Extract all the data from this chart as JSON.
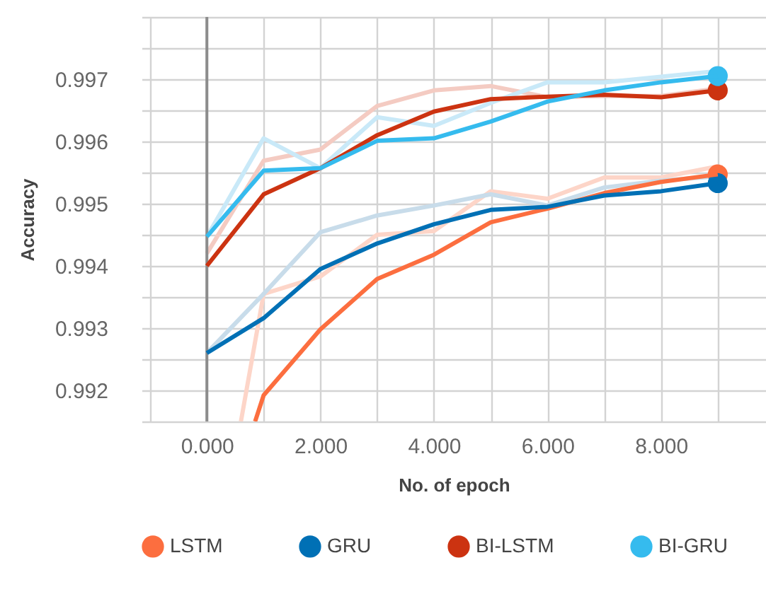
{
  "chart_data": {
    "type": "line",
    "xlabel": "No. of epoch",
    "ylabel": "Accuracy",
    "x": [
      0,
      1,
      2,
      3,
      4,
      5,
      6,
      7,
      8,
      9
    ],
    "xlim": [
      -1.15,
      9.85
    ],
    "xticks": [
      {
        "value": -1,
        "label": null
      },
      {
        "value": 0,
        "label": "0.000"
      },
      {
        "value": 1,
        "label": null
      },
      {
        "value": 2,
        "label": "2.000"
      },
      {
        "value": 3,
        "label": null
      },
      {
        "value": 4,
        "label": "4.000"
      },
      {
        "value": 5,
        "label": null
      },
      {
        "value": 6,
        "label": "6.000"
      },
      {
        "value": 7,
        "label": null
      },
      {
        "value": 8,
        "label": "8.000"
      },
      {
        "value": 9,
        "label": null
      }
    ],
    "ylim": [
      0.9915,
      0.998
    ],
    "yticks": [
      {
        "value": 0.9915,
        "label": null
      },
      0.992,
      {
        "value": 0.9925,
        "label": null
      },
      0.993,
      {
        "value": 0.9935,
        "label": null
      },
      0.994,
      {
        "value": 0.9945,
        "label": null
      },
      0.995,
      {
        "value": 0.9955,
        "label": null
      },
      0.996,
      {
        "value": 0.9965,
        "label": null
      },
      0.997,
      {
        "value": 0.9975,
        "label": null
      },
      {
        "value": 0.998,
        "label": null
      }
    ],
    "grid": true,
    "legend": "bottom",
    "ref_lines": [
      {
        "axis": "x",
        "value": 0,
        "color": "#8c8c8c"
      }
    ],
    "series": [
      {
        "color": "#fdd5c8",
        "x": [
          0.6,
          1,
          2,
          3,
          4,
          5,
          6,
          7,
          8,
          9
        ],
        "values": [
          0.9915,
          0.99355,
          0.99383,
          0.9945,
          0.99456,
          0.9952,
          0.99508,
          0.99542,
          0.99542,
          0.9956
        ]
      },
      {
        "color": "#c8dcea",
        "values": [
          0.9926,
          0.99355,
          0.99454,
          0.99481,
          0.99497,
          0.99515,
          0.99497,
          0.99526,
          0.99537,
          0.99544
        ]
      },
      {
        "color": "#f4cbc2",
        "values": [
          0.9942,
          0.99569,
          0.99587,
          0.99657,
          0.99682,
          0.99689,
          0.99671,
          0.99673,
          0.99673,
          0.99685
        ]
      },
      {
        "color": "#c9e9f8",
        "values": [
          0.99447,
          0.99605,
          0.99557,
          0.99639,
          0.99625,
          0.99662,
          0.99695,
          0.99695,
          0.99704,
          0.99713
        ]
      },
      {
        "name": "LSTM",
        "color": "#fc6e3f",
        "x": [
          0.85,
          1,
          2,
          3,
          4,
          5,
          6,
          7,
          8,
          9
        ],
        "values": [
          0.9915,
          0.99192,
          0.99298,
          0.99379,
          0.99418,
          0.9947,
          0.99492,
          0.99517,
          0.99535,
          0.99547
        ]
      },
      {
        "name": "GRU",
        "color": "#0070b5",
        "values": [
          0.9926,
          0.99316,
          0.99395,
          0.99436,
          0.99467,
          0.9949,
          0.99495,
          0.99513,
          0.9952,
          0.99533
        ]
      },
      {
        "name": "BI-LSTM",
        "color": "#cc3311",
        "values": [
          0.994,
          0.99515,
          0.99557,
          0.9961,
          0.99648,
          0.99668,
          0.99672,
          0.99675,
          0.99671,
          0.99682
        ]
      },
      {
        "name": "BI-GRU",
        "color": "#35bbee",
        "values": [
          0.99447,
          0.99553,
          0.99557,
          0.99601,
          0.99605,
          0.99632,
          0.99664,
          0.99682,
          0.99695,
          0.99705
        ]
      }
    ]
  }
}
